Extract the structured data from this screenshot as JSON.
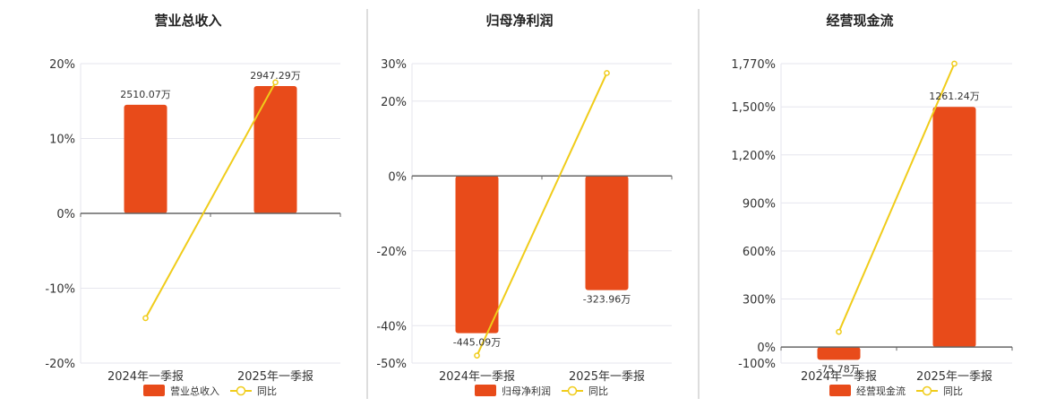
{
  "colors": {
    "bar": "#E84B1A",
    "line": "#F0CC1A",
    "grid": "#E6E6EE",
    "axis": "#666666",
    "divider": "#BBBBBB"
  },
  "chart_data": [
    {
      "type": "bar",
      "title": "营业总收入",
      "categories": [
        "2024年一季报",
        "2025年一季报"
      ],
      "series": [
        {
          "name": "营业总收入",
          "type": "bar",
          "values": [
            14.5,
            17.0
          ],
          "labels": [
            "2510.07万",
            "2947.29万"
          ]
        },
        {
          "name": "同比",
          "type": "line",
          "values": [
            -14.0,
            17.5
          ]
        }
      ],
      "ylim": [
        -20,
        20
      ],
      "yticks": [
        20,
        10,
        0,
        -10,
        -20
      ],
      "ytick_labels": [
        "20%",
        "10%",
        "0%",
        "-10%",
        "-20%"
      ],
      "grid": true,
      "legend": "bottom"
    },
    {
      "type": "bar",
      "title": "归母净利润",
      "categories": [
        "2024年一季报",
        "2025年一季报"
      ],
      "series": [
        {
          "name": "归母净利润",
          "type": "bar",
          "values": [
            -42.0,
            -30.5
          ],
          "labels": [
            "-445.09万",
            "-323.96万"
          ]
        },
        {
          "name": "同比",
          "type": "line",
          "values": [
            -48.0,
            27.5
          ]
        }
      ],
      "ylim": [
        -50,
        30
      ],
      "yticks": [
        30,
        20,
        0,
        -20,
        -40,
        -50
      ],
      "ytick_labels": [
        "30%",
        "20%",
        "0%",
        "-20%",
        "-40%",
        "-50%"
      ],
      "grid": true,
      "legend": "bottom"
    },
    {
      "type": "bar",
      "title": "经营现金流",
      "categories": [
        "2024年一季报",
        "2025年一季报"
      ],
      "series": [
        {
          "name": "经营现金流",
          "type": "bar",
          "values": [
            -80,
            1500
          ],
          "labels": [
            "-75.78万",
            "1261.24万"
          ]
        },
        {
          "name": "同比",
          "type": "line",
          "values": [
            95,
            1770
          ]
        }
      ],
      "ylim": [
        -100,
        1770
      ],
      "yticks": [
        1770,
        1500,
        1200,
        900,
        600,
        300,
        0,
        -100
      ],
      "ytick_labels": [
        "1,770%",
        "1,500%",
        "1,200%",
        "900%",
        "600%",
        "300%",
        "0%",
        "-100%"
      ],
      "grid": true,
      "legend": "bottom"
    }
  ]
}
